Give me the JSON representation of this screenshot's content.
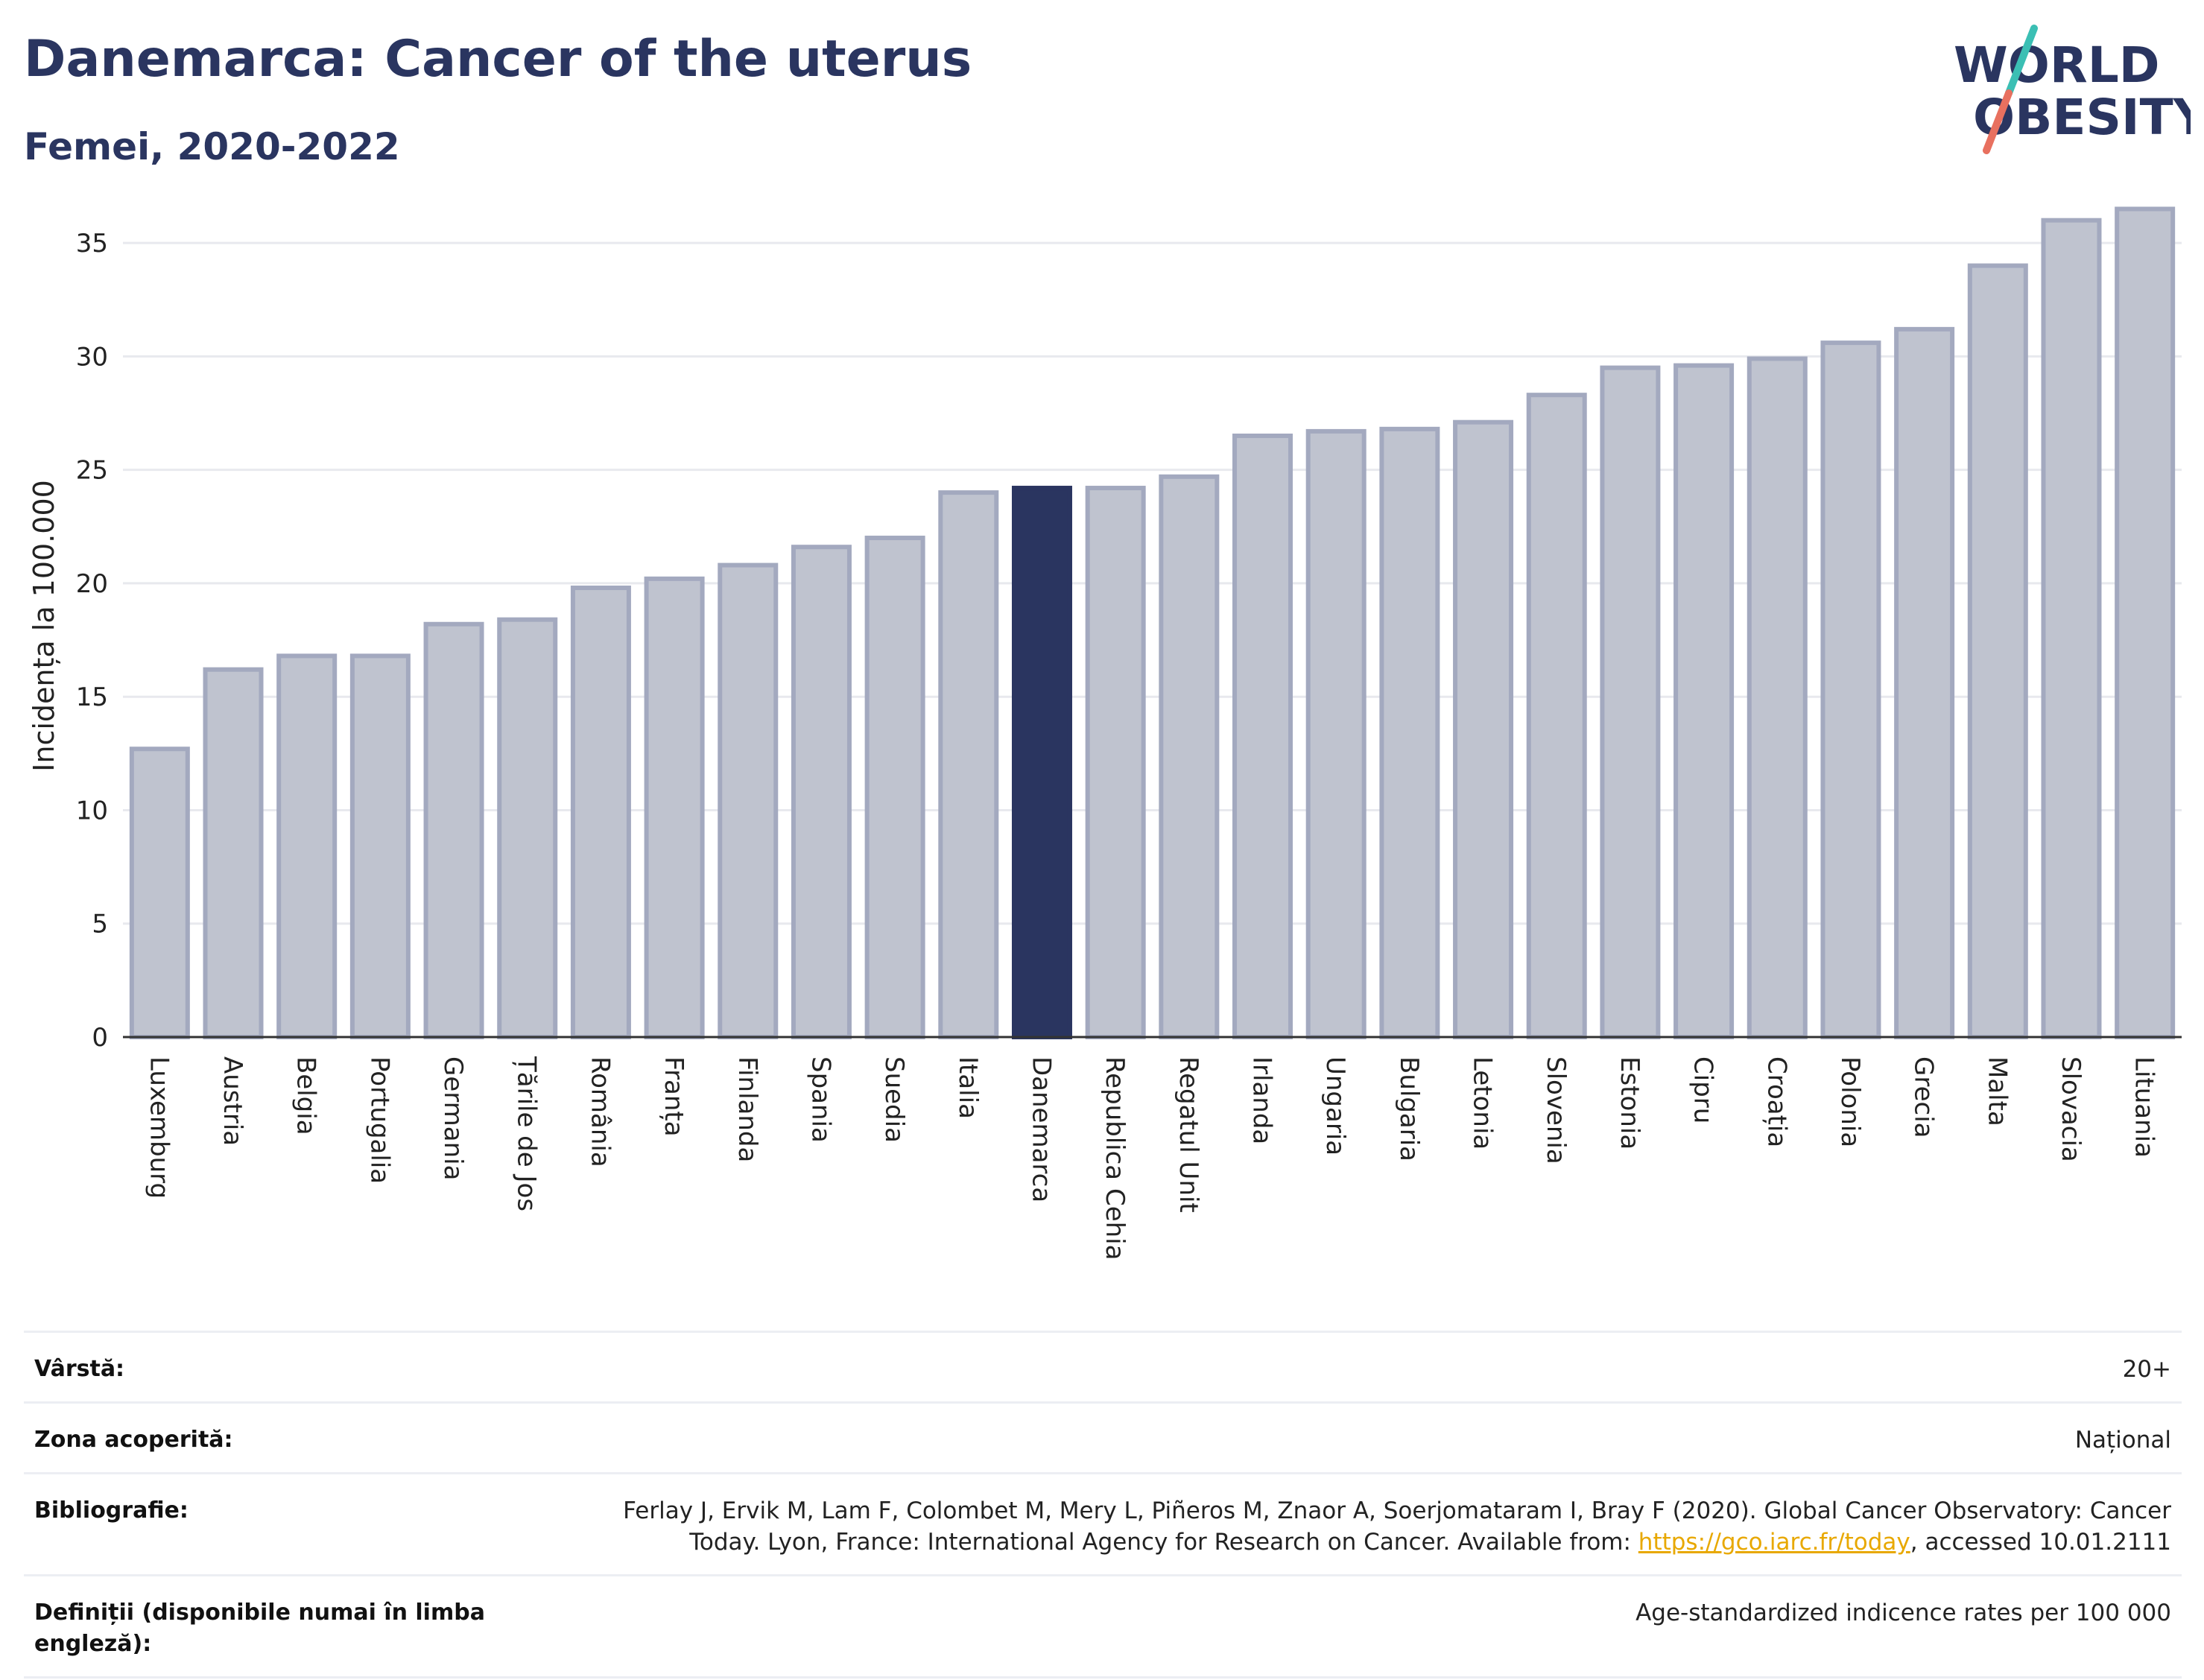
{
  "header": {
    "title": "Danemarca: Cancer of the uterus",
    "subtitle": "Femei, 2020-2022"
  },
  "logo": {
    "line1": "WORLD",
    "line2": "OBESITY",
    "colors": {
      "text": "#2a3560",
      "slash_top": "#3bbfb4",
      "slash_bottom": "#e8705f"
    }
  },
  "chart_data": {
    "type": "bar",
    "title": "Danemarca: Cancer of the uterus",
    "subtitle": "Femei, 2020-2022",
    "ylabel": "Incidența la 100.000",
    "xlabel": "",
    "ylim": [
      0,
      37.5
    ],
    "yticks": [
      0,
      5,
      10,
      15,
      20,
      25,
      30,
      35
    ],
    "grid": true,
    "highlight": "Danemarca",
    "colors": {
      "bar": "#bfc3cf",
      "bar_edge": "#a3a9bf",
      "highlight": "#2a3560"
    },
    "categories": [
      "Luxemburg",
      "Austria",
      "Belgia",
      "Portugalia",
      "Germania",
      "Țările de Jos",
      "România",
      "Franța",
      "Finlanda",
      "Spania",
      "Suedia",
      "Italia",
      "Danemarca",
      "Republica Cehia",
      "Regatul Unit",
      "Irlanda",
      "Ungaria",
      "Bulgaria",
      "Letonia",
      "Slovenia",
      "Estonia",
      "Cipru",
      "Croația",
      "Polonia",
      "Grecia",
      "Malta",
      "Slovacia",
      "Lituania"
    ],
    "values": [
      12.7,
      16.2,
      16.8,
      16.8,
      18.2,
      18.4,
      19.8,
      20.2,
      20.8,
      21.6,
      22.0,
      24.0,
      24.2,
      24.2,
      24.7,
      26.5,
      26.7,
      26.8,
      27.1,
      28.3,
      29.5,
      29.6,
      29.9,
      30.6,
      31.2,
      34.0,
      36.0,
      36.5
    ]
  },
  "meta": [
    {
      "key": "Vârstă:",
      "value": "20+"
    },
    {
      "key": "Zona acoperită:",
      "value": "Național"
    },
    {
      "key": "Bibliografie:",
      "value_pre": "Ferlay J, Ervik M, Lam F, Colombet M, Mery L, Piñeros M, Znaor A, Soerjomataram I, Bray F (2020). Global Cancer Observatory: Cancer Today. Lyon, France: International Agency for Research on Cancer. Available from: ",
      "link": "https://gco.iarc.fr/today",
      "value_post": ", accessed 10.01.2111"
    },
    {
      "key": "Definiții (disponibile numai în limba engleză):",
      "value": "Age-standardized indicence rates per 100 000"
    }
  ]
}
